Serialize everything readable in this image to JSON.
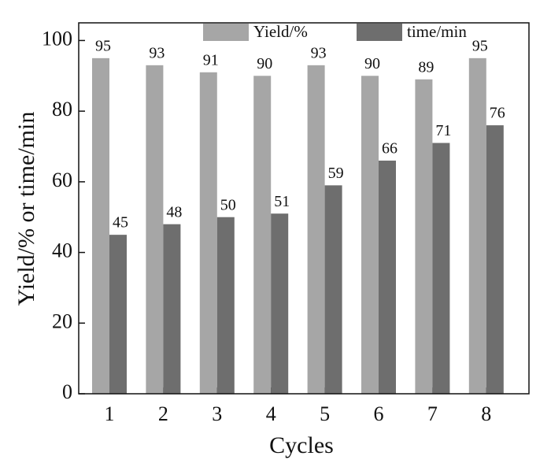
{
  "chart_data": {
    "type": "bar",
    "categories": [
      "1",
      "2",
      "3",
      "4",
      "5",
      "6",
      "7",
      "8"
    ],
    "series": [
      {
        "name": "Yield/%",
        "color": "#a6a6a6",
        "values": [
          95,
          93,
          91,
          90,
          93,
          90,
          89,
          95
        ]
      },
      {
        "name": "time/min",
        "color": "#6e6e6e",
        "values": [
          45,
          48,
          50,
          51,
          59,
          66,
          71,
          76
        ]
      }
    ],
    "xlabel": "Cycles",
    "ylabel": "Yield/% or time/min",
    "ylim": [
      0,
      105
    ],
    "yticks": [
      0,
      20,
      40,
      60,
      80,
      100
    ],
    "grid": false,
    "legend": "top"
  }
}
